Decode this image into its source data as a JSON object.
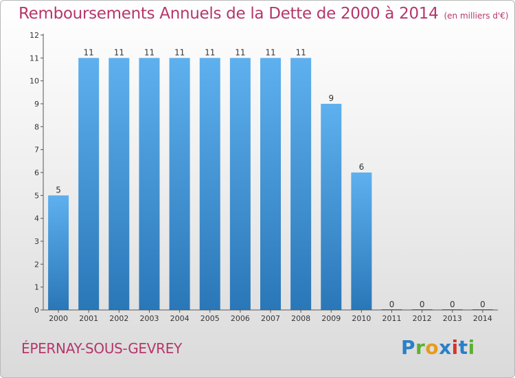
{
  "title": "Remboursements Annuels de la Dette de 2000 à 2014",
  "subtitle": "(en milliers d'€)",
  "commune": "ÉPERNAY-SOUS-GEVREY",
  "logo": {
    "text": "Proxiti",
    "colors": [
      "#2a7fc8",
      "#5cb030",
      "#e79b1d",
      "#2a7fc8",
      "#d7342b",
      "#2a7fc8",
      "#5cb030"
    ]
  },
  "colors": {
    "accent": "#b5366b",
    "bar_light": "#5eb0ee",
    "bar_dark": "#2a77b8"
  },
  "chart_data": {
    "type": "bar",
    "categories": [
      "2000",
      "2001",
      "2002",
      "2003",
      "2004",
      "2005",
      "2006",
      "2007",
      "2008",
      "2009",
      "2010",
      "2011",
      "2012",
      "2013",
      "2014"
    ],
    "values": [
      5,
      11,
      11,
      11,
      11,
      11,
      11,
      11,
      11,
      9,
      6,
      0,
      0,
      0,
      0
    ],
    "data_labels": [
      "5",
      "11",
      "11",
      "11",
      "11",
      "11",
      "11",
      "11",
      "11",
      "9",
      "6",
      "0",
      "0",
      "0",
      "0"
    ],
    "title": "Remboursements Annuels de la Dette de 2000 à 2014",
    "xlabel": "",
    "ylabel": "",
    "ylim": [
      0,
      12
    ],
    "yticks": [
      0,
      1,
      2,
      3,
      4,
      5,
      6,
      7,
      8,
      9,
      10,
      11,
      12
    ],
    "grid": false
  }
}
